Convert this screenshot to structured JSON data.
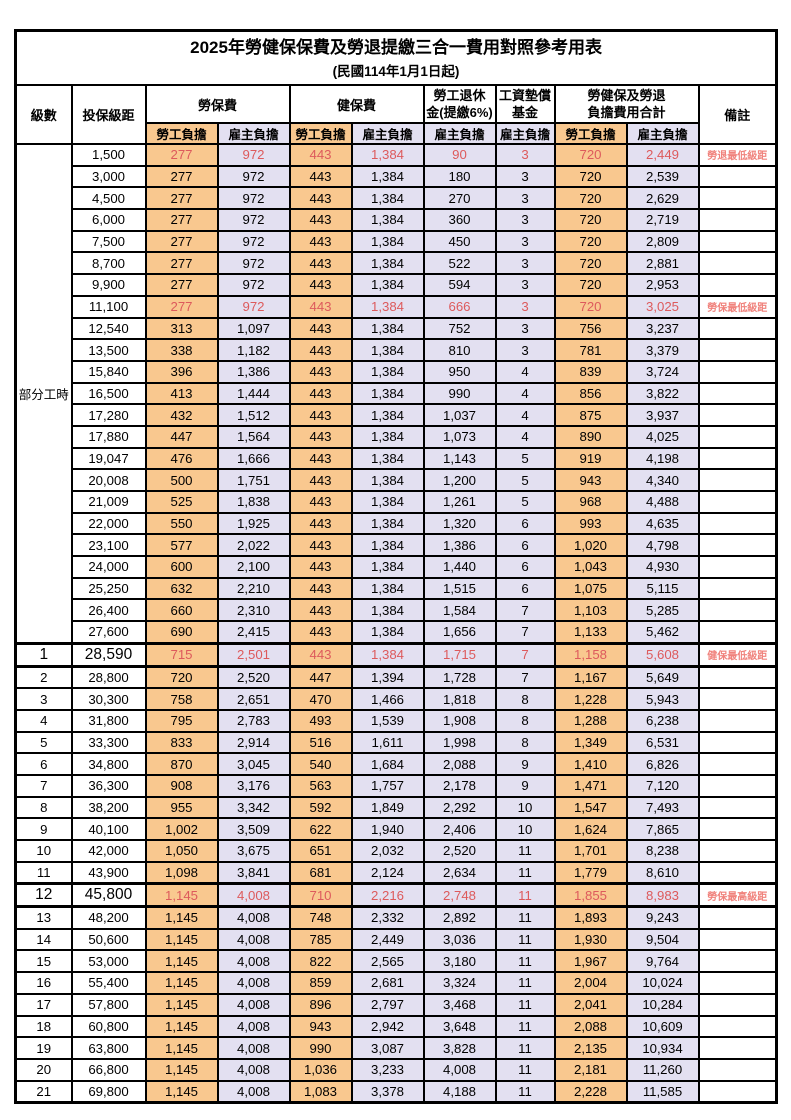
{
  "title": "2025年勞健保保費及勞退提繳三合一費用對照參考用表",
  "subtitle": "(民國114年1月1日起)",
  "columns": {
    "level": "級數",
    "salary": "投保級距",
    "labor_insurance": "勞保費",
    "health_insurance": "健保費",
    "pension_line1": "勞工退休",
    "pension_line2": "金(提繳6%)",
    "wage_fund_line1": "工資墊償",
    "wage_fund_line2": "基金",
    "total_line1": "勞健保及勞退",
    "total_line2": "負擔費用合計",
    "remarks": "備註"
  },
  "subheaders": [
    "勞工負擔",
    "雇主負擔",
    "勞工負擔",
    "雇主負擔",
    "雇主負擔",
    "雇主負擔",
    "勞工負擔",
    "雇主負擔"
  ],
  "part_time_label": "部分工時",
  "colors": {
    "employee_bg": "#f9c88f",
    "employer_bg": "#e3e0f1",
    "highlight_text": "#dd5a5c",
    "note_text": "#f0827c"
  },
  "rows": [
    {
      "level": "",
      "salary": "1,500",
      "values": [
        "277",
        "972",
        "443",
        "1,384",
        "90",
        "3",
        "720",
        "2,449"
      ],
      "note": "勞退最低級距",
      "highlight": true,
      "thick": false
    },
    {
      "level": "",
      "salary": "3,000",
      "values": [
        "277",
        "972",
        "443",
        "1,384",
        "180",
        "3",
        "720",
        "2,539"
      ],
      "note": "",
      "highlight": false,
      "thick": false
    },
    {
      "level": "",
      "salary": "4,500",
      "values": [
        "277",
        "972",
        "443",
        "1,384",
        "270",
        "3",
        "720",
        "2,629"
      ],
      "note": "",
      "highlight": false,
      "thick": false
    },
    {
      "level": "",
      "salary": "6,000",
      "values": [
        "277",
        "972",
        "443",
        "1,384",
        "360",
        "3",
        "720",
        "2,719"
      ],
      "note": "",
      "highlight": false,
      "thick": false
    },
    {
      "level": "",
      "salary": "7,500",
      "values": [
        "277",
        "972",
        "443",
        "1,384",
        "450",
        "3",
        "720",
        "2,809"
      ],
      "note": "",
      "highlight": false,
      "thick": false
    },
    {
      "level": "",
      "salary": "8,700",
      "values": [
        "277",
        "972",
        "443",
        "1,384",
        "522",
        "3",
        "720",
        "2,881"
      ],
      "note": "",
      "highlight": false,
      "thick": false
    },
    {
      "level": "",
      "salary": "9,900",
      "values": [
        "277",
        "972",
        "443",
        "1,384",
        "594",
        "3",
        "720",
        "2,953"
      ],
      "note": "",
      "highlight": false,
      "thick": false
    },
    {
      "level": "",
      "salary": "11,100",
      "values": [
        "277",
        "972",
        "443",
        "1,384",
        "666",
        "3",
        "720",
        "3,025"
      ],
      "note": "勞保最低級距",
      "highlight": true,
      "thick": false
    },
    {
      "level": "",
      "salary": "12,540",
      "values": [
        "313",
        "1,097",
        "443",
        "1,384",
        "752",
        "3",
        "756",
        "3,237"
      ],
      "note": "",
      "highlight": false,
      "thick": false
    },
    {
      "level": "",
      "salary": "13,500",
      "values": [
        "338",
        "1,182",
        "443",
        "1,384",
        "810",
        "3",
        "781",
        "3,379"
      ],
      "note": "",
      "highlight": false,
      "thick": false
    },
    {
      "level": "",
      "salary": "15,840",
      "values": [
        "396",
        "1,386",
        "443",
        "1,384",
        "950",
        "4",
        "839",
        "3,724"
      ],
      "note": "",
      "highlight": false,
      "thick": false
    },
    {
      "level": "",
      "salary": "16,500",
      "values": [
        "413",
        "1,444",
        "443",
        "1,384",
        "990",
        "4",
        "856",
        "3,822"
      ],
      "note": "",
      "highlight": false,
      "thick": false
    },
    {
      "level": "",
      "salary": "17,280",
      "values": [
        "432",
        "1,512",
        "443",
        "1,384",
        "1,037",
        "4",
        "875",
        "3,937"
      ],
      "note": "",
      "highlight": false,
      "thick": false
    },
    {
      "level": "",
      "salary": "17,880",
      "values": [
        "447",
        "1,564",
        "443",
        "1,384",
        "1,073",
        "4",
        "890",
        "4,025"
      ],
      "note": "",
      "highlight": false,
      "thick": false
    },
    {
      "level": "",
      "salary": "19,047",
      "values": [
        "476",
        "1,666",
        "443",
        "1,384",
        "1,143",
        "5",
        "919",
        "4,198"
      ],
      "note": "",
      "highlight": false,
      "thick": false
    },
    {
      "level": "",
      "salary": "20,008",
      "values": [
        "500",
        "1,751",
        "443",
        "1,384",
        "1,200",
        "5",
        "943",
        "4,340"
      ],
      "note": "",
      "highlight": false,
      "thick": false
    },
    {
      "level": "",
      "salary": "21,009",
      "values": [
        "525",
        "1,838",
        "443",
        "1,384",
        "1,261",
        "5",
        "968",
        "4,488"
      ],
      "note": "",
      "highlight": false,
      "thick": false
    },
    {
      "level": "",
      "salary": "22,000",
      "values": [
        "550",
        "1,925",
        "443",
        "1,384",
        "1,320",
        "6",
        "993",
        "4,635"
      ],
      "note": "",
      "highlight": false,
      "thick": false
    },
    {
      "level": "",
      "salary": "23,100",
      "values": [
        "577",
        "2,022",
        "443",
        "1,384",
        "1,386",
        "6",
        "1,020",
        "4,798"
      ],
      "note": "",
      "highlight": false,
      "thick": false
    },
    {
      "level": "",
      "salary": "24,000",
      "values": [
        "600",
        "2,100",
        "443",
        "1,384",
        "1,440",
        "6",
        "1,043",
        "4,930"
      ],
      "note": "",
      "highlight": false,
      "thick": false
    },
    {
      "level": "",
      "salary": "25,250",
      "values": [
        "632",
        "2,210",
        "443",
        "1,384",
        "1,515",
        "6",
        "1,075",
        "5,115"
      ],
      "note": "",
      "highlight": false,
      "thick": false
    },
    {
      "level": "",
      "salary": "26,400",
      "values": [
        "660",
        "2,310",
        "443",
        "1,384",
        "1,584",
        "7",
        "1,103",
        "5,285"
      ],
      "note": "",
      "highlight": false,
      "thick": false
    },
    {
      "level": "",
      "salary": "27,600",
      "values": [
        "690",
        "2,415",
        "443",
        "1,384",
        "1,656",
        "7",
        "1,133",
        "5,462"
      ],
      "note": "",
      "highlight": false,
      "thick": false
    },
    {
      "level": "1",
      "salary": "28,590",
      "values": [
        "715",
        "2,501",
        "443",
        "1,384",
        "1,715",
        "7",
        "1,158",
        "5,608"
      ],
      "note": "健保最低級距",
      "highlight": true,
      "thick": true
    },
    {
      "level": "2",
      "salary": "28,800",
      "values": [
        "720",
        "2,520",
        "447",
        "1,394",
        "1,728",
        "7",
        "1,167",
        "5,649"
      ],
      "note": "",
      "highlight": false,
      "thick": false
    },
    {
      "level": "3",
      "salary": "30,300",
      "values": [
        "758",
        "2,651",
        "470",
        "1,466",
        "1,818",
        "8",
        "1,228",
        "5,943"
      ],
      "note": "",
      "highlight": false,
      "thick": false
    },
    {
      "level": "4",
      "salary": "31,800",
      "values": [
        "795",
        "2,783",
        "493",
        "1,539",
        "1,908",
        "8",
        "1,288",
        "6,238"
      ],
      "note": "",
      "highlight": false,
      "thick": false
    },
    {
      "level": "5",
      "salary": "33,300",
      "values": [
        "833",
        "2,914",
        "516",
        "1,611",
        "1,998",
        "8",
        "1,349",
        "6,531"
      ],
      "note": "",
      "highlight": false,
      "thick": false
    },
    {
      "level": "6",
      "salary": "34,800",
      "values": [
        "870",
        "3,045",
        "540",
        "1,684",
        "2,088",
        "9",
        "1,410",
        "6,826"
      ],
      "note": "",
      "highlight": false,
      "thick": false
    },
    {
      "level": "7",
      "salary": "36,300",
      "values": [
        "908",
        "3,176",
        "563",
        "1,757",
        "2,178",
        "9",
        "1,471",
        "7,120"
      ],
      "note": "",
      "highlight": false,
      "thick": false
    },
    {
      "level": "8",
      "salary": "38,200",
      "values": [
        "955",
        "3,342",
        "592",
        "1,849",
        "2,292",
        "10",
        "1,547",
        "7,493"
      ],
      "note": "",
      "highlight": false,
      "thick": false
    },
    {
      "level": "9",
      "salary": "40,100",
      "values": [
        "1,002",
        "3,509",
        "622",
        "1,940",
        "2,406",
        "10",
        "1,624",
        "7,865"
      ],
      "note": "",
      "highlight": false,
      "thick": false
    },
    {
      "level": "10",
      "salary": "42,000",
      "values": [
        "1,050",
        "3,675",
        "651",
        "2,032",
        "2,520",
        "11",
        "1,701",
        "8,238"
      ],
      "note": "",
      "highlight": false,
      "thick": false
    },
    {
      "level": "11",
      "salary": "43,900",
      "values": [
        "1,098",
        "3,841",
        "681",
        "2,124",
        "2,634",
        "11",
        "1,779",
        "8,610"
      ],
      "note": "",
      "highlight": false,
      "thick": false
    },
    {
      "level": "12",
      "salary": "45,800",
      "values": [
        "1,145",
        "4,008",
        "710",
        "2,216",
        "2,748",
        "11",
        "1,855",
        "8,983"
      ],
      "note": "勞保最高級距",
      "highlight": true,
      "thick": true
    },
    {
      "level": "13",
      "salary": "48,200",
      "values": [
        "1,145",
        "4,008",
        "748",
        "2,332",
        "2,892",
        "11",
        "1,893",
        "9,243"
      ],
      "note": "",
      "highlight": false,
      "thick": false
    },
    {
      "level": "14",
      "salary": "50,600",
      "values": [
        "1,145",
        "4,008",
        "785",
        "2,449",
        "3,036",
        "11",
        "1,930",
        "9,504"
      ],
      "note": "",
      "highlight": false,
      "thick": false
    },
    {
      "level": "15",
      "salary": "53,000",
      "values": [
        "1,145",
        "4,008",
        "822",
        "2,565",
        "3,180",
        "11",
        "1,967",
        "9,764"
      ],
      "note": "",
      "highlight": false,
      "thick": false
    },
    {
      "level": "16",
      "salary": "55,400",
      "values": [
        "1,145",
        "4,008",
        "859",
        "2,681",
        "3,324",
        "11",
        "2,004",
        "10,024"
      ],
      "note": "",
      "highlight": false,
      "thick": false
    },
    {
      "level": "17",
      "salary": "57,800",
      "values": [
        "1,145",
        "4,008",
        "896",
        "2,797",
        "3,468",
        "11",
        "2,041",
        "10,284"
      ],
      "note": "",
      "highlight": false,
      "thick": false
    },
    {
      "level": "18",
      "salary": "60,800",
      "values": [
        "1,145",
        "4,008",
        "943",
        "2,942",
        "3,648",
        "11",
        "2,088",
        "10,609"
      ],
      "note": "",
      "highlight": false,
      "thick": false
    },
    {
      "level": "19",
      "salary": "63,800",
      "values": [
        "1,145",
        "4,008",
        "990",
        "3,087",
        "3,828",
        "11",
        "2,135",
        "10,934"
      ],
      "note": "",
      "highlight": false,
      "thick": false
    },
    {
      "level": "20",
      "salary": "66,800",
      "values": [
        "1,145",
        "4,008",
        "1,036",
        "3,233",
        "4,008",
        "11",
        "2,181",
        "11,260"
      ],
      "note": "",
      "highlight": false,
      "thick": false
    },
    {
      "level": "21",
      "salary": "69,800",
      "values": [
        "1,145",
        "4,008",
        "1,083",
        "3,378",
        "4,188",
        "11",
        "2,228",
        "11,585"
      ],
      "note": "",
      "highlight": false,
      "thick": false
    }
  ]
}
